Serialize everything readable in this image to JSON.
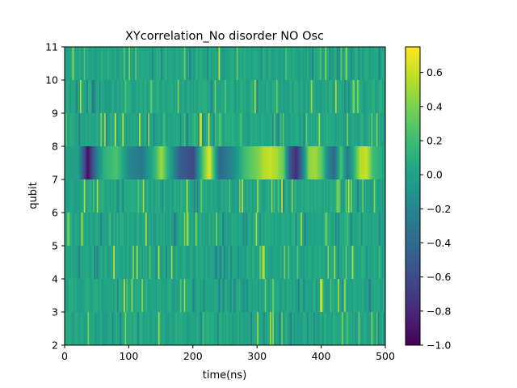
{
  "chart_data": {
    "type": "heatmap",
    "title": "XYcorrelation_No disorder NO Osc",
    "xlabel": "time(ns)",
    "ylabel": "qubit",
    "xlim": [
      0,
      500
    ],
    "ylim": [
      2,
      11
    ],
    "x_ticks": [
      0,
      100,
      200,
      300,
      400,
      500
    ],
    "y_ticks": [
      2,
      3,
      4,
      5,
      6,
      7,
      8,
      9,
      10,
      11
    ],
    "rows": [
      {
        "qubit_range": [
          2,
          3
        ],
        "pattern": "near-zero noise with sparse positive spikes"
      },
      {
        "qubit_range": [
          3,
          4
        ],
        "pattern": "near-zero noise with sparse positive spikes"
      },
      {
        "qubit_range": [
          4,
          5
        ],
        "pattern": "near-zero noise with sparse positive spikes"
      },
      {
        "qubit_range": [
          5,
          6
        ],
        "pattern": "near-zero noise with sparse positive spikes"
      },
      {
        "qubit_range": [
          6,
          7
        ],
        "pattern": "near-zero noise with sparse positive spikes"
      },
      {
        "qubit_range": [
          7,
          8
        ],
        "pattern": "strong correlation band",
        "time_ns": [
          0,
          20,
          30,
          35,
          40,
          50,
          60,
          80,
          100,
          120,
          140,
          150,
          160,
          180,
          200,
          215,
          225,
          230,
          240,
          260,
          280,
          300,
          310,
          320,
          330,
          340,
          350,
          360,
          370,
          380,
          390,
          400,
          410,
          420,
          430,
          440,
          450,
          460,
          470,
          480,
          500
        ],
        "values": [
          0.0,
          0.0,
          -0.6,
          -0.95,
          -0.7,
          -0.2,
          0.1,
          0.25,
          -0.2,
          -0.3,
          0.15,
          0.5,
          0.1,
          -0.5,
          -0.6,
          0.3,
          0.7,
          0.3,
          -0.4,
          -0.2,
          0.2,
          0.4,
          0.55,
          0.6,
          0.5,
          0.35,
          -0.5,
          -0.8,
          -0.3,
          0.45,
          0.5,
          0.3,
          -0.2,
          -0.4,
          0.25,
          -0.3,
          0.1,
          0.55,
          0.6,
          0.2,
          0.0
        ]
      },
      {
        "qubit_range": [
          8,
          9
        ],
        "pattern": "near-zero noise with sparse positive spikes"
      },
      {
        "qubit_range": [
          9,
          10
        ],
        "pattern": "near-zero noise with sparse positive spikes"
      },
      {
        "qubit_range": [
          10,
          11
        ],
        "pattern": "near-zero noise with sparse positive spikes"
      }
    ],
    "colorbar": {
      "colormap": "viridis",
      "vmin": -1.0,
      "vmax": 0.75,
      "ticks": [
        -1.0,
        -0.8,
        -0.6,
        -0.4,
        -0.2,
        0.0,
        0.2,
        0.4,
        0.6
      ],
      "tick_labels": [
        "−1.0",
        "−0.8",
        "−0.6",
        "−0.4",
        "−0.2",
        "0.0",
        "0.2",
        "0.4",
        "0.6"
      ]
    }
  }
}
